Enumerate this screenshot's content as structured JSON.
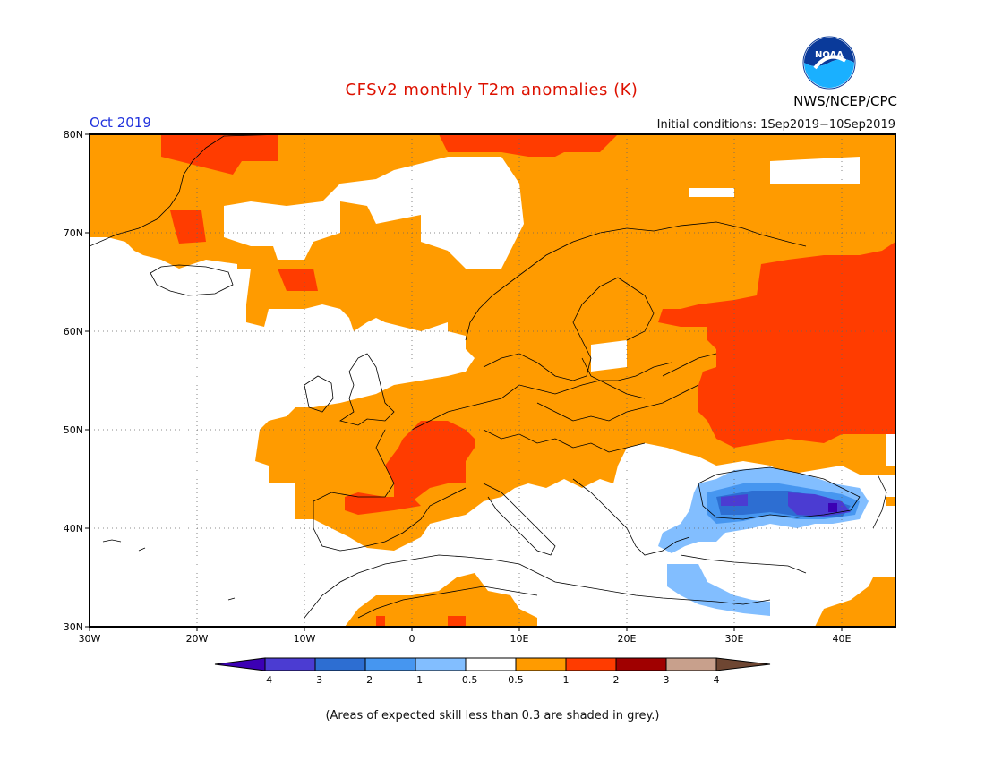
{
  "header": {
    "title": "CFSv2 monthly T2m anomalies (K)",
    "month": "Oct 2019",
    "initial_conditions": "Initial conditions: 1Sep2019−10Sep2019",
    "agency": "NWS/NCEP/CPC",
    "logo_text": "NOAA"
  },
  "map": {
    "lat_labels": [
      "80N",
      "70N",
      "60N",
      "50N",
      "40N",
      "30N"
    ],
    "lon_labels": [
      "30W",
      "20W",
      "10W",
      "0",
      "10E",
      "20E",
      "30E",
      "40E"
    ],
    "lat_range": [
      30,
      80
    ],
    "lon_range": [
      -30,
      45
    ],
    "grid": "dotted"
  },
  "colorbar": {
    "labels": [
      "−4",
      "−3",
      "−2",
      "−1",
      "−0.5",
      "0.5",
      "1",
      "2",
      "3",
      "4"
    ],
    "colors": [
      "#3c00b4",
      "#4b3cd2",
      "#2d6ed2",
      "#4696f0",
      "#82beff",
      "#ffffff",
      "#ff9b00",
      "#ff3c00",
      "#a00000",
      "#c8a08c",
      "#6e4632"
    ]
  },
  "anomaly_regions": [
    {
      "name": "Northern and central Europe",
      "category": "0.5 to 1",
      "color": "#ff9b00"
    },
    {
      "name": "Western Russia",
      "category": "1 to 2",
      "color": "#ff3c00"
    },
    {
      "name": "France",
      "category": "1 to 2",
      "color": "#ff3c00"
    },
    {
      "name": "Black Sea / Turkey",
      "category": "−1 to −3",
      "color": "#2d6ed2"
    },
    {
      "name": "Mediterranean",
      "category": "−0.5 to 0.5",
      "color": "#ffffff"
    }
  ],
  "footnote": "(Areas of expected skill less than 0.3 are shaded in grey.)"
}
